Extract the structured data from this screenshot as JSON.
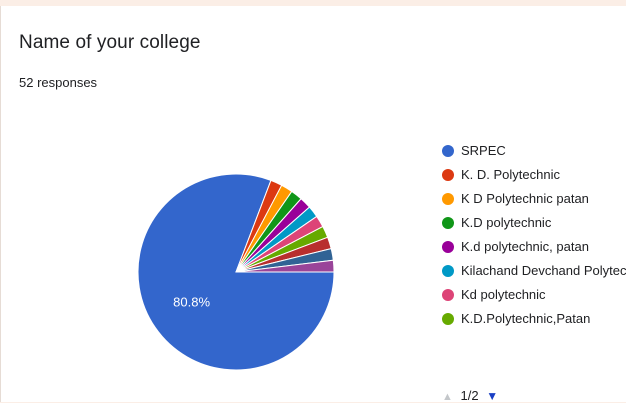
{
  "question": {
    "title": "Name of your college",
    "responses": "52 responses"
  },
  "legend": {
    "pager_text": "1/2",
    "prev_icon": "triangle-up-icon",
    "next_icon": "triangle-down-icon"
  },
  "chart_data": {
    "type": "pie",
    "title": "Name of your college",
    "total": 52,
    "slices": [
      {
        "label": "SRPEC",
        "value": 80.8,
        "color": "#3366cc",
        "data_label": "80.8%"
      },
      {
        "label": "K. D. Polytechnic",
        "value": 1.92,
        "color": "#dc3912"
      },
      {
        "label": "K D Polytechnic patan",
        "value": 1.92,
        "color": "#ff9900"
      },
      {
        "label": "K.D polytechnic",
        "value": 1.92,
        "color": "#109618"
      },
      {
        "label": "K.d polytechnic, patan",
        "value": 1.92,
        "color": "#990099"
      },
      {
        "label": "Kilachand Devchand Polytechnic",
        "value": 1.92,
        "color": "#0099c6"
      },
      {
        "label": "Kd polytechnic",
        "value": 1.92,
        "color": "#dd4477"
      },
      {
        "label": "K.D.Polytechnic,Patan",
        "value": 1.92,
        "color": "#66aa00"
      },
      {
        "label": "",
        "value": 1.92,
        "color": "#b82e2e"
      },
      {
        "label": "",
        "value": 1.92,
        "color": "#316395"
      },
      {
        "label": "",
        "value": 1.92,
        "color": "#994499"
      }
    ],
    "legend_visible_count": 8,
    "legend_position": "right"
  }
}
